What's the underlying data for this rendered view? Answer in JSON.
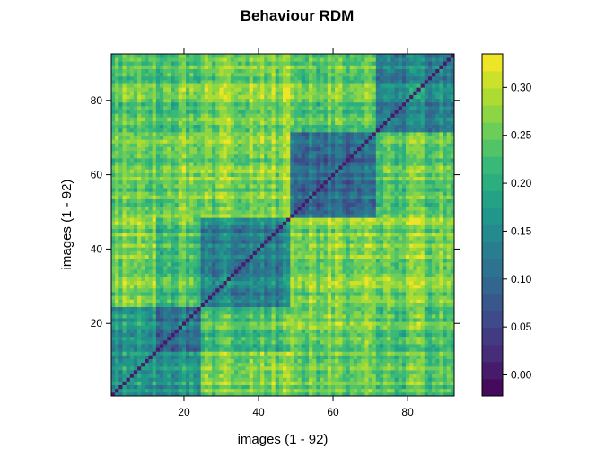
{
  "chart_data": {
    "type": "heatmap",
    "title": "Behaviour RDM",
    "xlabel": "images (1 - 92)",
    "ylabel": "images (1 - 92)",
    "n": 92,
    "x_ticks": [
      20,
      40,
      60,
      80
    ],
    "y_ticks": [
      20,
      40,
      60,
      80
    ],
    "axis_range": [
      0.5,
      92.5
    ],
    "blocks": [
      {
        "name": "A",
        "start": 1,
        "end": 12
      },
      {
        "name": "B",
        "start": 13,
        "end": 24
      },
      {
        "name": "C",
        "start": 25,
        "end": 48
      },
      {
        "name": "D",
        "start": 49,
        "end": 71
      },
      {
        "name": "E",
        "start": 72,
        "end": 92
      }
    ],
    "block_mean_dissimilarity": [
      [
        0.17,
        0.17,
        0.26,
        0.25,
        0.24
      ],
      [
        0.17,
        0.12,
        0.23,
        0.26,
        0.24
      ],
      [
        0.26,
        0.23,
        0.13,
        0.26,
        0.26
      ],
      [
        0.25,
        0.26,
        0.26,
        0.1,
        0.24
      ],
      [
        0.24,
        0.24,
        0.26,
        0.24,
        0.14
      ]
    ],
    "diagonal_value": 0.0,
    "colorbar": {
      "ticks": [
        0.0,
        0.05,
        0.1,
        0.15,
        0.2,
        0.25,
        0.3
      ],
      "tick_labels": [
        "0.00",
        "0.05",
        "0.10",
        "0.15",
        "0.20",
        "0.25",
        "0.30"
      ],
      "min": -0.022,
      "max": 0.335,
      "levels": 20,
      "colormap": "viridis"
    }
  },
  "colors": {
    "viridis_stops": [
      "#440154",
      "#482878",
      "#3e4989",
      "#31688e",
      "#26828e",
      "#1f9e89",
      "#35b779",
      "#6ece58",
      "#b5de2b",
      "#fde725"
    ]
  }
}
